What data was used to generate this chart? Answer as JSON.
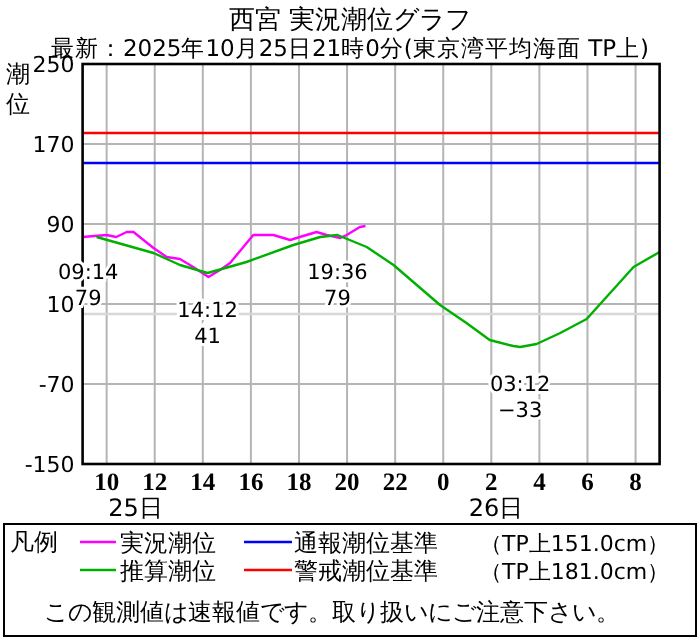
{
  "chart_data": {
    "type": "line",
    "title": "西宮 実況潮位グラフ",
    "subtitle": "最新：2025年10月25日21時0分(東京湾平均海面 TP上)",
    "ylabel": "潮位",
    "legend_title": "凡例",
    "xlim": [
      "2025-10-25T09:00",
      "2025-10-26T09:00"
    ],
    "xticks": [
      {
        "value": "2025-10-25T10:00",
        "label": "10"
      },
      {
        "value": "2025-10-25T12:00",
        "label": "12"
      },
      {
        "value": "2025-10-25T14:00",
        "label": "14"
      },
      {
        "value": "2025-10-25T16:00",
        "label": "16"
      },
      {
        "value": "2025-10-25T18:00",
        "label": "18"
      },
      {
        "value": "2025-10-25T20:00",
        "label": "20"
      },
      {
        "value": "2025-10-25T22:00",
        "label": "22"
      },
      {
        "value": "2025-10-26T00:00",
        "label": "0"
      },
      {
        "value": "2025-10-26T02:00",
        "label": "2"
      },
      {
        "value": "2025-10-26T04:00",
        "label": "4"
      },
      {
        "value": "2025-10-26T06:00",
        "label": "6"
      },
      {
        "value": "2025-10-26T08:00",
        "label": "8"
      }
    ],
    "ylim": [
      -150,
      250
    ],
    "yticks": [
      -150,
      -70,
      10,
      90,
      170,
      250
    ],
    "grid": true,
    "legend": "bottom",
    "series": [
      {
        "name": "実況潮位",
        "color": "#ff00ff",
        "x": [
          "2025-10-25T09:00",
          "2025-10-25T10:00",
          "2025-10-25T10:24",
          "2025-10-25T10:50",
          "2025-10-25T11:07",
          "2025-10-25T11:57",
          "2025-10-25T12:30",
          "2025-10-25T13:03",
          "2025-10-25T13:36",
          "2025-10-25T14:14",
          "2025-10-25T14:43",
          "2025-10-25T15:08",
          "2025-10-25T16:06",
          "2025-10-25T16:56",
          "2025-10-25T17:38",
          "2025-10-25T18:02",
          "2025-10-25T18:44",
          "2025-10-25T19:09",
          "2025-10-25T19:43",
          "2025-10-25T19:59",
          "2025-10-25T20:32",
          "2025-10-25T20:46"
        ],
        "values": [
          77,
          79,
          77,
          82,
          82,
          66,
          57,
          55,
          47,
          37,
          44,
          51,
          79,
          79,
          74,
          77,
          82,
          79,
          76,
          79,
          87,
          88
        ]
      },
      {
        "name": "推算潮位",
        "color": "#00b000",
        "x": [
          "2025-10-25T09:35",
          "2025-10-25T11:57",
          "2025-10-25T13:03",
          "2025-10-25T14:12",
          "2025-10-25T15:49",
          "2025-10-25T17:46",
          "2025-10-25T18:53",
          "2025-10-25T19:36",
          "2025-10-25T20:49",
          "2025-10-25T21:56",
          "2025-10-25T23:52",
          "2025-10-26T00:58",
          "2025-10-26T01:56",
          "2025-10-26T02:55",
          "2025-10-26T03:12",
          "2025-10-26T03:53",
          "2025-10-26T04:52",
          "2025-10-26T05:58",
          "2025-10-26T07:55",
          "2025-10-26T09:00"
        ],
        "values": [
          77,
          61,
          49,
          41,
          52,
          69,
          77,
          79,
          67,
          49,
          9,
          -9,
          -26,
          -32,
          -33,
          -30,
          -19,
          -5,
          47,
          62
        ]
      }
    ],
    "ref_lines": [
      {
        "axis": "y",
        "value": 151,
        "label": "通報潮位基準",
        "color": "#0000ff"
      },
      {
        "axis": "y",
        "value": 181,
        "label": "警戒潮位基準",
        "color": "#ff0000"
      },
      {
        "axis": "y",
        "value": 0,
        "color": "#d8d8d8"
      }
    ],
    "annotations": [
      {
        "text": "09:14\n79",
        "x": "2025-10-25T09:14",
        "y": 79
      },
      {
        "text": "14:12\n41",
        "x": "2025-10-25T14:12",
        "y": 41
      },
      {
        "text": "19:36\n79",
        "x": "2025-10-25T19:36",
        "y": 79
      },
      {
        "text": "03:12\n−33",
        "x": "2025-10-26T03:12",
        "y": -33
      },
      "25日",
      "26日",
      "（TP上151.0cm）",
      "（TP上181.0cm）",
      "この観測値は速報値です。取り扱いにご注意下さい。"
    ]
  }
}
